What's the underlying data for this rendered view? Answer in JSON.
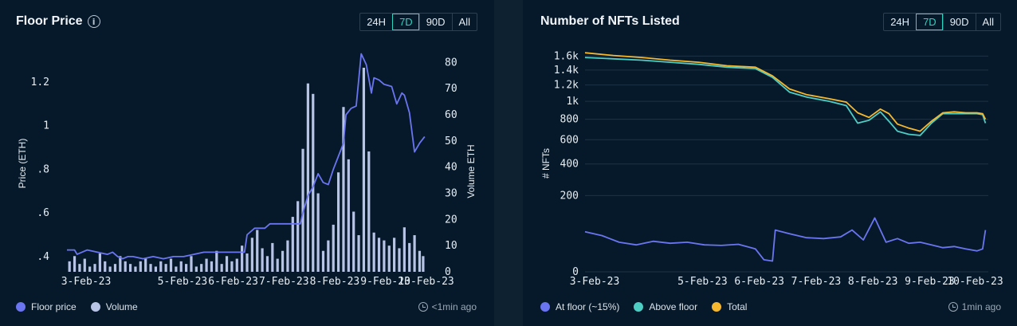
{
  "floor_panel": {
    "title": "Floor Price",
    "ranges": [
      "24H",
      "7D",
      "90D",
      "All"
    ],
    "active_range": "7D",
    "legend": [
      {
        "label": "Floor price",
        "color": "#6b75f0"
      },
      {
        "label": "Volume",
        "color": "#b8c4e6"
      }
    ],
    "updated": "<1min ago"
  },
  "listed_panel": {
    "title": "Number of NFTs Listed",
    "ranges": [
      "24H",
      "7D",
      "90D",
      "All"
    ],
    "active_range": "7D",
    "legend": [
      {
        "label": "At floor (~15%)",
        "color": "#6b75f0"
      },
      {
        "label": "Above floor",
        "color": "#4ecdc4"
      },
      {
        "label": "Total",
        "color": "#f5b82e"
      }
    ],
    "updated": "1min ago"
  },
  "chart_data": [
    {
      "type": "line",
      "title": "Floor Price",
      "ylabel": "Price (ETH)",
      "y2label": "Volume ETH",
      "ylim": [
        0.33,
        1.35
      ],
      "y2lim": [
        0,
        85
      ],
      "yticks": [
        "1.2",
        "1",
        ".8",
        ".6",
        ".4"
      ],
      "ytick_values": [
        1.2,
        1.0,
        0.8,
        0.6,
        0.4
      ],
      "y2ticks": [
        80,
        70,
        60,
        50,
        40,
        30,
        20,
        10,
        0
      ],
      "xticks": [
        "3-Feb-23",
        "5-Feb-23",
        "6-Feb-23",
        "7-Feb-23",
        "8-Feb-23",
        "9-Feb-23",
        "10-Feb-23"
      ],
      "xtick_pos": [
        0.0,
        1.9,
        2.9,
        3.9,
        4.9,
        5.9,
        6.7
      ],
      "xlim": [
        0,
        7.1
      ],
      "grid": false,
      "legend_position": "bottom-left",
      "series": [
        {
          "name": "Floor price",
          "kind": "line",
          "color": "#6b75f0",
          "x": [
            0,
            0.15,
            0.2,
            0.4,
            0.6,
            0.8,
            0.9,
            1.0,
            1.1,
            1.2,
            1.3,
            1.5,
            1.7,
            1.9,
            2.1,
            2.3,
            2.5,
            2.7,
            2.9,
            3.1,
            3.3,
            3.5,
            3.55,
            3.7,
            3.9,
            4.0,
            4.2,
            4.4,
            4.6,
            4.65,
            4.75,
            4.85,
            4.95,
            5.05,
            5.15,
            5.25,
            5.35,
            5.45,
            5.5,
            5.6,
            5.7,
            5.8,
            5.9,
            6.0,
            6.05,
            6.15,
            6.25,
            6.4,
            6.5,
            6.6,
            6.65,
            6.75,
            6.85,
            6.95,
            7.05
          ],
          "y": [
            0.43,
            0.43,
            0.41,
            0.43,
            0.42,
            0.41,
            0.42,
            0.4,
            0.39,
            0.4,
            0.4,
            0.39,
            0.4,
            0.39,
            0.4,
            0.4,
            0.41,
            0.42,
            0.42,
            0.42,
            0.42,
            0.42,
            0.5,
            0.53,
            0.53,
            0.55,
            0.55,
            0.55,
            0.55,
            0.6,
            0.68,
            0.72,
            0.78,
            0.74,
            0.73,
            0.8,
            0.86,
            0.92,
            1.05,
            1.08,
            1.09,
            1.33,
            1.28,
            1.15,
            1.22,
            1.21,
            1.19,
            1.18,
            1.1,
            1.15,
            1.14,
            1.06,
            0.88,
            0.92,
            0.95
          ]
        },
        {
          "name": "Volume",
          "kind": "bar",
          "color": "#b8c4e6",
          "x": [
            0.05,
            0.15,
            0.25,
            0.35,
            0.45,
            0.55,
            0.65,
            0.75,
            0.85,
            0.95,
            1.05,
            1.15,
            1.25,
            1.35,
            1.45,
            1.55,
            1.65,
            1.75,
            1.85,
            1.95,
            2.05,
            2.15,
            2.25,
            2.35,
            2.45,
            2.55,
            2.65,
            2.75,
            2.85,
            2.95,
            3.05,
            3.15,
            3.25,
            3.35,
            3.45,
            3.55,
            3.65,
            3.75,
            3.85,
            3.95,
            4.05,
            4.15,
            4.25,
            4.35,
            4.45,
            4.55,
            4.65,
            4.75,
            4.85,
            4.95,
            5.05,
            5.15,
            5.25,
            5.35,
            5.45,
            5.55,
            5.65,
            5.75,
            5.85,
            5.95,
            6.05,
            6.15,
            6.25,
            6.35,
            6.45,
            6.55,
            6.65,
            6.75,
            6.85,
            6.95,
            7.02
          ],
          "y": [
            4,
            6,
            3,
            5,
            2,
            3,
            7,
            4,
            2,
            3,
            6,
            4,
            3,
            2,
            4,
            5,
            3,
            2,
            4,
            3,
            5,
            2,
            4,
            3,
            6,
            2,
            3,
            5,
            4,
            8,
            3,
            6,
            4,
            5,
            10,
            7,
            13,
            16,
            9,
            6,
            11,
            5,
            8,
            12,
            21,
            27,
            47,
            72,
            68,
            30,
            8,
            12,
            18,
            38,
            63,
            43,
            23,
            14,
            78,
            46,
            15,
            13,
            12,
            10,
            13,
            9,
            17,
            11,
            14,
            8,
            6
          ]
        }
      ]
    },
    {
      "type": "line",
      "title": "Number of NFTs Listed",
      "ylabel": "# NFTs",
      "yscale": "sqrt",
      "ylim": [
        0,
        1750
      ],
      "yticks": [
        "1.6k",
        "1.4k",
        "1.2k",
        "1k",
        "800",
        "600",
        "400",
        "200",
        "0"
      ],
      "ytick_values": [
        1600,
        1400,
        1200,
        1000,
        800,
        600,
        400,
        200,
        0
      ],
      "xticks": [
        "3-Feb-23",
        "5-Feb-23",
        "6-Feb-23",
        "7-Feb-23",
        "8-Feb-23",
        "9-Feb-23",
        "10-Feb-23"
      ],
      "xtick_pos": [
        0.0,
        1.9,
        2.9,
        3.9,
        4.9,
        5.9,
        6.7
      ],
      "xlim": [
        0,
        7.1
      ],
      "grid": true,
      "legend_position": "bottom-left",
      "series": [
        {
          "name": "Total",
          "color": "#f5b82e",
          "x": [
            0,
            0.5,
            1.0,
            1.5,
            2.0,
            2.5,
            3.0,
            3.3,
            3.6,
            3.9,
            4.3,
            4.6,
            4.8,
            5.0,
            5.2,
            5.35,
            5.5,
            5.7,
            5.9,
            6.1,
            6.3,
            6.5,
            6.7,
            6.9,
            7.0,
            7.05
          ],
          "y": [
            1650,
            1610,
            1580,
            1540,
            1510,
            1460,
            1440,
            1320,
            1150,
            1080,
            1030,
            990,
            870,
            820,
            910,
            860,
            750,
            710,
            680,
            780,
            870,
            880,
            870,
            870,
            860,
            800
          ]
        },
        {
          "name": "Above floor",
          "color": "#4ecdc4",
          "x": [
            0,
            0.5,
            1.0,
            1.5,
            2.0,
            2.5,
            3.0,
            3.3,
            3.6,
            3.9,
            4.3,
            4.6,
            4.8,
            5.0,
            5.2,
            5.35,
            5.5,
            5.7,
            5.9,
            6.1,
            6.3,
            6.5,
            6.7,
            6.9,
            7.0,
            7.05
          ],
          "y": [
            1580,
            1560,
            1540,
            1510,
            1480,
            1440,
            1420,
            1300,
            1110,
            1050,
            1000,
            950,
            760,
            790,
            880,
            780,
            680,
            650,
            640,
            760,
            860,
            860,
            860,
            860,
            850,
            760
          ]
        },
        {
          "name": "At floor (~15%)",
          "color": "#6b75f0",
          "x": [
            0,
            0.3,
            0.6,
            0.9,
            1.2,
            1.5,
            1.8,
            2.1,
            2.4,
            2.7,
            3.0,
            3.15,
            3.3,
            3.35,
            3.6,
            3.9,
            4.2,
            4.5,
            4.7,
            4.9,
            5.1,
            5.3,
            5.5,
            5.7,
            5.9,
            6.1,
            6.3,
            6.5,
            6.7,
            6.9,
            7.0,
            7.05
          ],
          "y": [
            55,
            45,
            30,
            25,
            32,
            28,
            30,
            25,
            24,
            26,
            18,
            5,
            4,
            60,
            50,
            40,
            38,
            42,
            60,
            35,
            100,
            30,
            38,
            28,
            30,
            25,
            20,
            22,
            18,
            15,
            18,
            60
          ]
        }
      ]
    }
  ]
}
